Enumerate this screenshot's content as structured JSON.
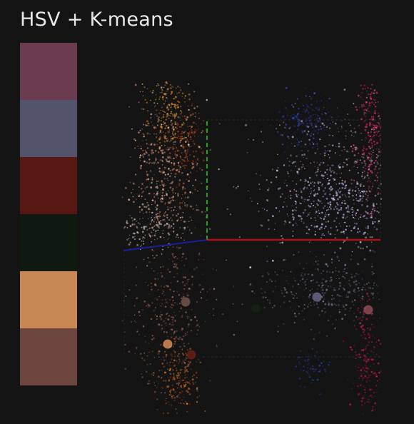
{
  "title": "HSV + K-means",
  "palette": [
    {
      "color": "#6b3b4f"
    },
    {
      "color": "#53526b"
    },
    {
      "color": "#571713"
    },
    {
      "color": "#0f190f"
    },
    {
      "color": "#c88855"
    },
    {
      "color": "#6d463f"
    }
  ],
  "axes_colors": {
    "x_axis": "#b01015",
    "y_axis": "#20a020",
    "z_axis": "#1a1fa0"
  },
  "cluster_centers": [
    {
      "color": "#73524e"
    },
    {
      "color": "#d28b52"
    },
    {
      "color": "#6a1d14"
    },
    {
      "color": "#6b6482"
    },
    {
      "color": "#8e4a55"
    },
    {
      "color": "#162016"
    }
  ]
}
